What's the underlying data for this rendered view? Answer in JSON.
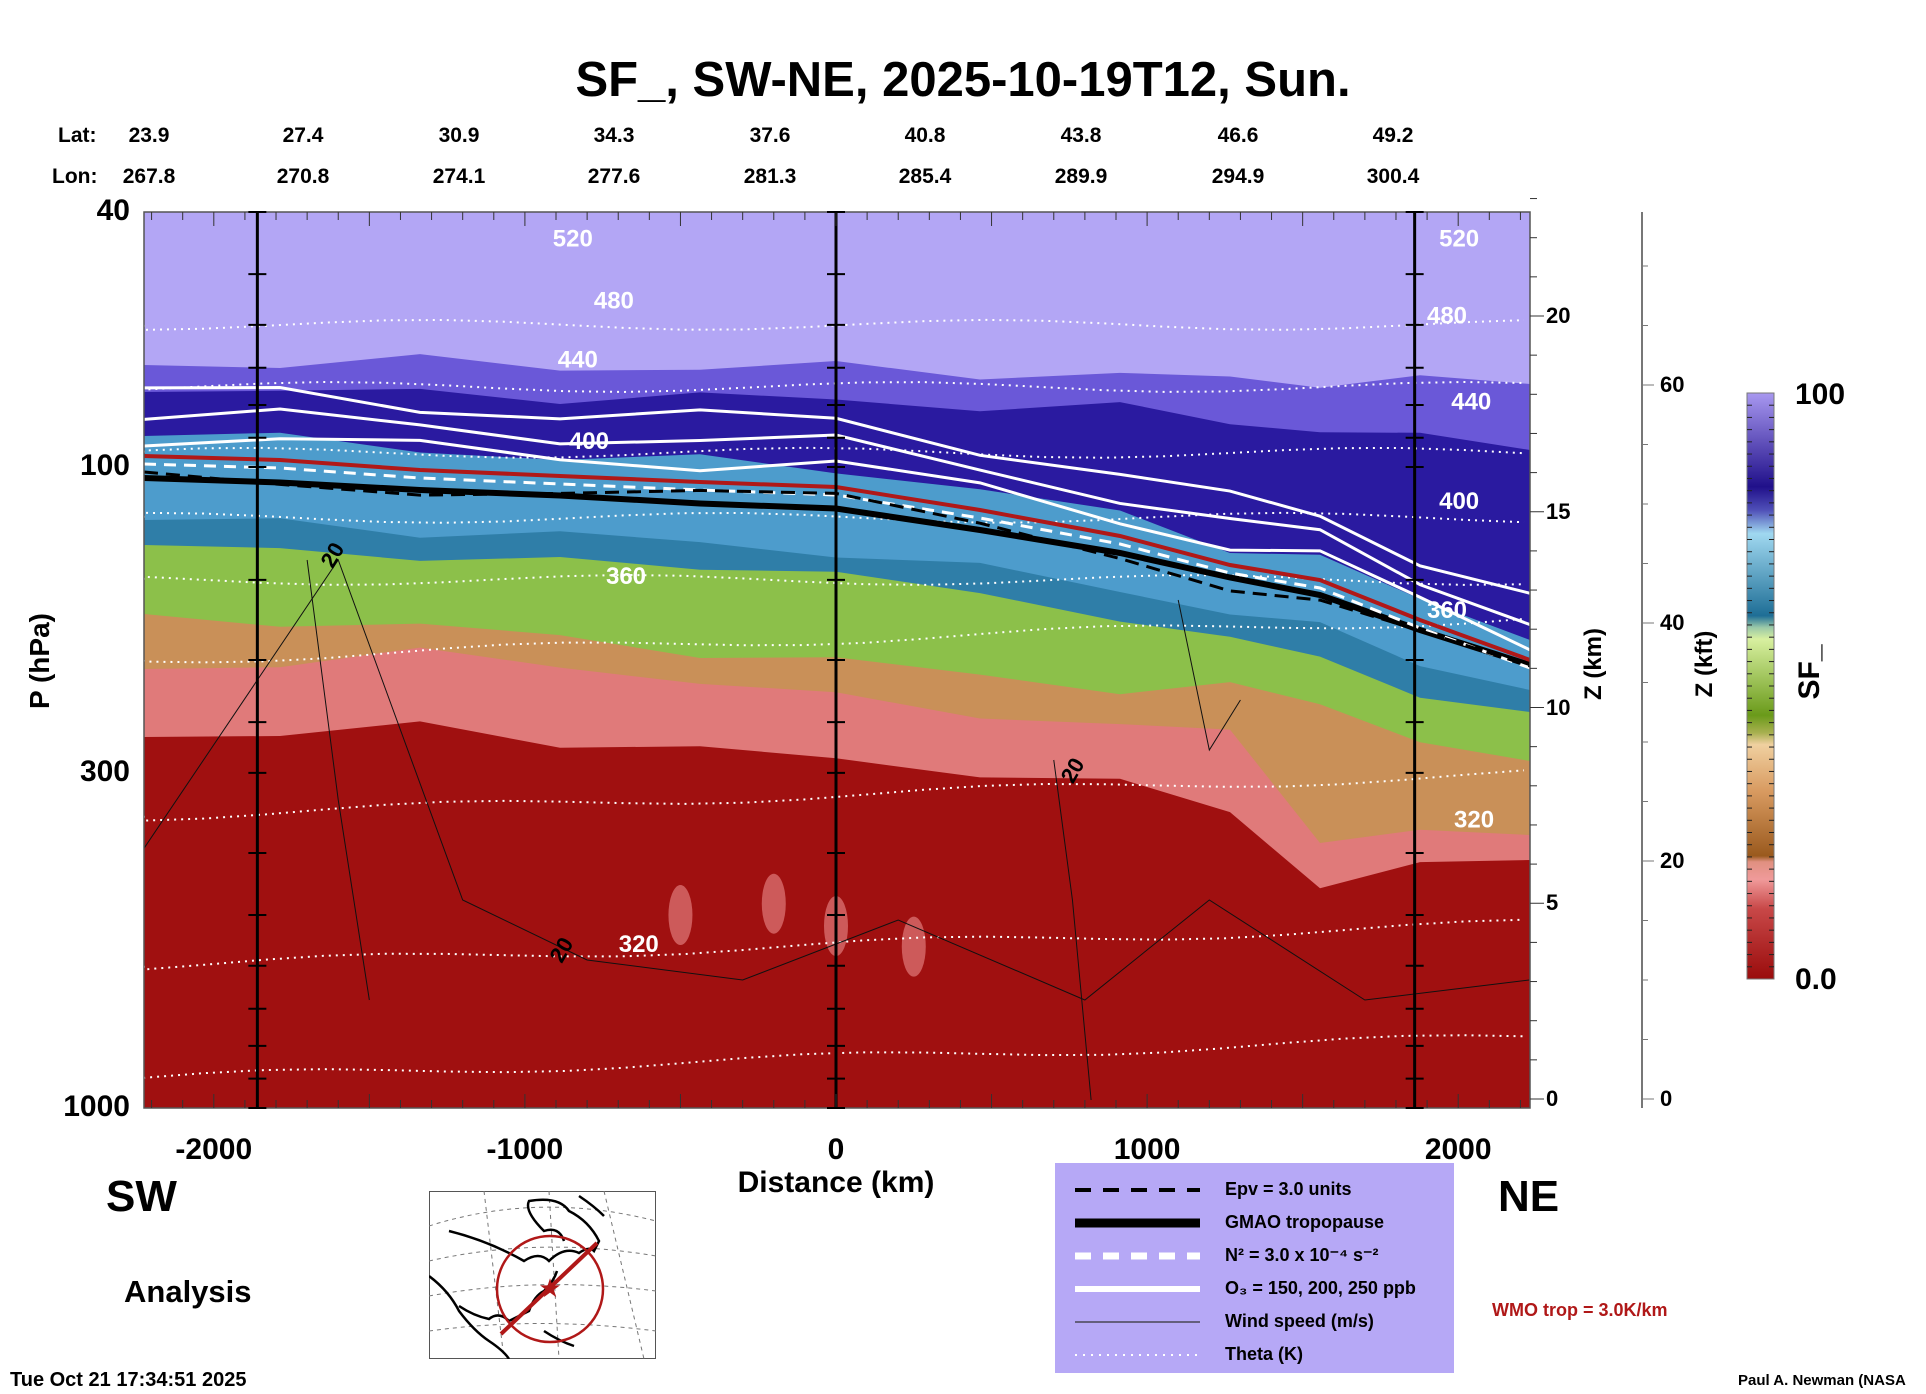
{
  "title": "SF_, SW-NE, 2025-10-19T12, Sun.",
  "lat_label": "Lat:",
  "lon_label": "Lon:",
  "lat": [
    "23.9",
    "27.4",
    "30.9",
    "34.3",
    "37.6",
    "40.8",
    "43.8",
    "46.6",
    "49.2"
  ],
  "lon": [
    "267.8",
    "270.8",
    "274.1",
    "277.6",
    "281.3",
    "285.4",
    "289.9",
    "294.9",
    "300.4"
  ],
  "left_label": "SW",
  "right_label": "NE",
  "mode_label": "Analysis",
  "wmo_label": "WMO trop = 3.0K/km",
  "timestamp": "Tue Oct 21 17:34:51 2025",
  "credit": "Paul A. Newman (NASA",
  "colors": {
    "wmo": "#b01818",
    "legend_bg": "#b6a8f6"
  },
  "chart_data": {
    "type": "heatmap",
    "title": "SF_, SW-NE, 2025-10-19T12, Sun.",
    "xlabel": "Distance (km)",
    "ylabel": "P (hPa)",
    "y2label": "Z (km)",
    "y3label": "Z (kft)",
    "xlim": [
      -2228,
      2228
    ],
    "ylim": [
      1000,
      40
    ],
    "x_ticks": [
      "-2000",
      "-1000",
      "0",
      "1000",
      "2000"
    ],
    "x_tick_values": [
      -2000,
      -1000,
      0,
      1000,
      2000
    ],
    "y_ticks": [
      "40",
      "100",
      "300",
      "1000"
    ],
    "y_tick_values": [
      40,
      100,
      300,
      1000
    ],
    "z_km_ticks": [
      "0",
      "5",
      "10",
      "15",
      "20"
    ],
    "z_kft_ticks": [
      "0",
      "20",
      "40",
      "60"
    ],
    "section_lines_km": [
      -1860,
      0,
      1860
    ],
    "colorbar": {
      "label": "SF_",
      "min": "0.0",
      "max": "100"
    },
    "theta_labels": [
      {
        "text": "520",
        "km": -846,
        "p": 44
      },
      {
        "text": "480",
        "km": -714,
        "p": 55
      },
      {
        "text": "440",
        "km": -830,
        "p": 68
      },
      {
        "text": "400",
        "km": -794,
        "p": 91
      },
      {
        "text": "360",
        "km": -675,
        "p": 148
      },
      {
        "text": "320",
        "km": -634,
        "p": 555
      },
      {
        "text": "520",
        "km": 2003,
        "p": 44
      },
      {
        "text": "480",
        "km": 1964,
        "p": 58
      },
      {
        "text": "440",
        "km": 2042,
        "p": 79
      },
      {
        "text": "400",
        "km": 2003,
        "p": 113
      },
      {
        "text": "360",
        "km": 1964,
        "p": 167
      },
      {
        "text": "320",
        "km": 2051,
        "p": 355
      }
    ],
    "wind_labels": [
      {
        "text": "20",
        "km": -1620,
        "p": 137
      },
      {
        "text": "20",
        "km": -884,
        "p": 566
      },
      {
        "text": "20",
        "km": 759,
        "p": 297
      }
    ],
    "legend": [
      {
        "style": "black-dashed",
        "label": "Epv = 3.0 units"
      },
      {
        "style": "black-thick",
        "label": "GMAO tropopause"
      },
      {
        "style": "white-dashed",
        "label": "N² = 3.0 x 10⁻⁴ s⁻²"
      },
      {
        "style": "white-solid",
        "label": "O₃ = 150, 200, 250 ppb"
      },
      {
        "style": "black-thin",
        "label": "Wind speed (m/s)"
      },
      {
        "style": "white-dotted",
        "label": "Theta (K)"
      }
    ]
  }
}
